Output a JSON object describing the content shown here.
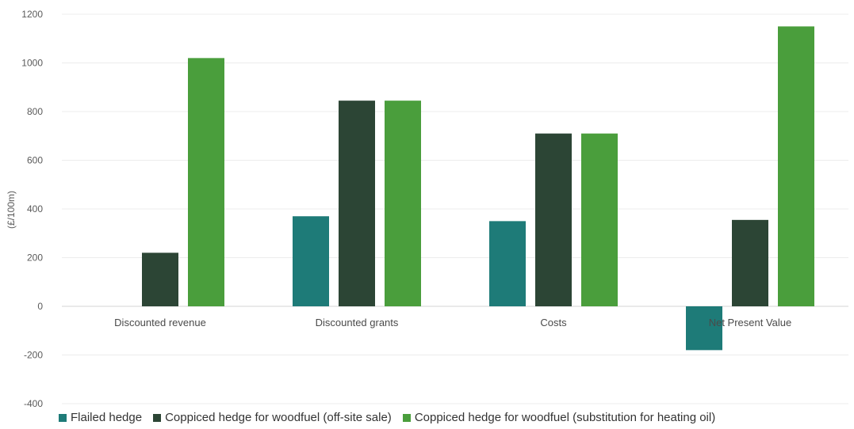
{
  "chart_data": {
    "type": "bar",
    "ylabel": "(£/100m)",
    "ylim": [
      -400,
      1200
    ],
    "yticks": [
      -400,
      -200,
      0,
      200,
      400,
      600,
      800,
      1000,
      1200
    ],
    "grid": true,
    "legend_position": "bottom",
    "categories": [
      "Discounted revenue",
      "Discounted grants",
      "Costs",
      "Net Present Value"
    ],
    "series": [
      {
        "name": "Flailed hedge",
        "color": "#1e7b78",
        "values": [
          0,
          370,
          350,
          -180
        ]
      },
      {
        "name": "Coppiced hedge for woodfuel (off-site sale)",
        "color": "#2c4535",
        "values": [
          220,
          845,
          710,
          355
        ]
      },
      {
        "name": "Coppiced hedge for woodfuel (substitution for heating oil)",
        "color": "#4a9e3c",
        "values": [
          1020,
          845,
          710,
          1150
        ]
      }
    ]
  }
}
